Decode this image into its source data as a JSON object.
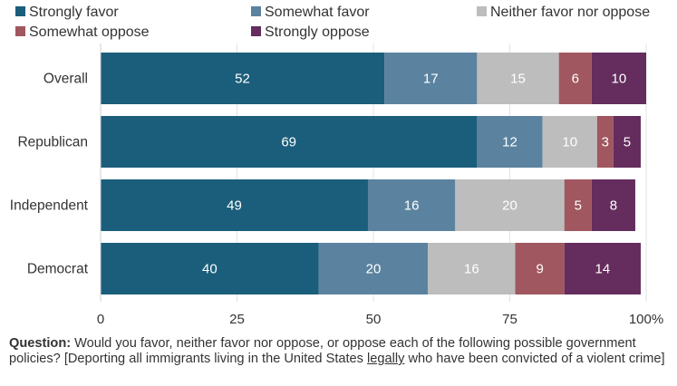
{
  "chart_data": {
    "type": "bar",
    "orientation": "horizontal",
    "stacked": true,
    "categories": [
      "Overall",
      "Republican",
      "Independent",
      "Democrat"
    ],
    "series": [
      {
        "name": "Strongly favor",
        "values": [
          52,
          69,
          49,
          40
        ]
      },
      {
        "name": "Somewhat favor",
        "values": [
          17,
          12,
          16,
          20
        ]
      },
      {
        "name": "Neither favor nor oppose",
        "values": [
          15,
          10,
          20,
          16
        ]
      },
      {
        "name": "Somewhat oppose",
        "values": [
          6,
          3,
          5,
          9
        ]
      },
      {
        "name": "Strongly oppose",
        "values": [
          10,
          5,
          8,
          14
        ]
      }
    ],
    "xticks": [
      "0",
      "25",
      "50",
      "75",
      "100%"
    ],
    "xlim": [
      0,
      100
    ],
    "legend_position": "top",
    "colors": [
      "#1b5e7b",
      "#5b83a0",
      "#bdbdbd",
      "#a0575f",
      "#642d5d"
    ]
  },
  "caption": {
    "label": "Question:",
    "text_before": " Would you favor, neither favor nor oppose, or oppose each of the following possible government policies? [Deporting all immigrants living in the United States ",
    "underlined": "legally",
    "text_after": " who have been convicted of a violent crime]"
  }
}
